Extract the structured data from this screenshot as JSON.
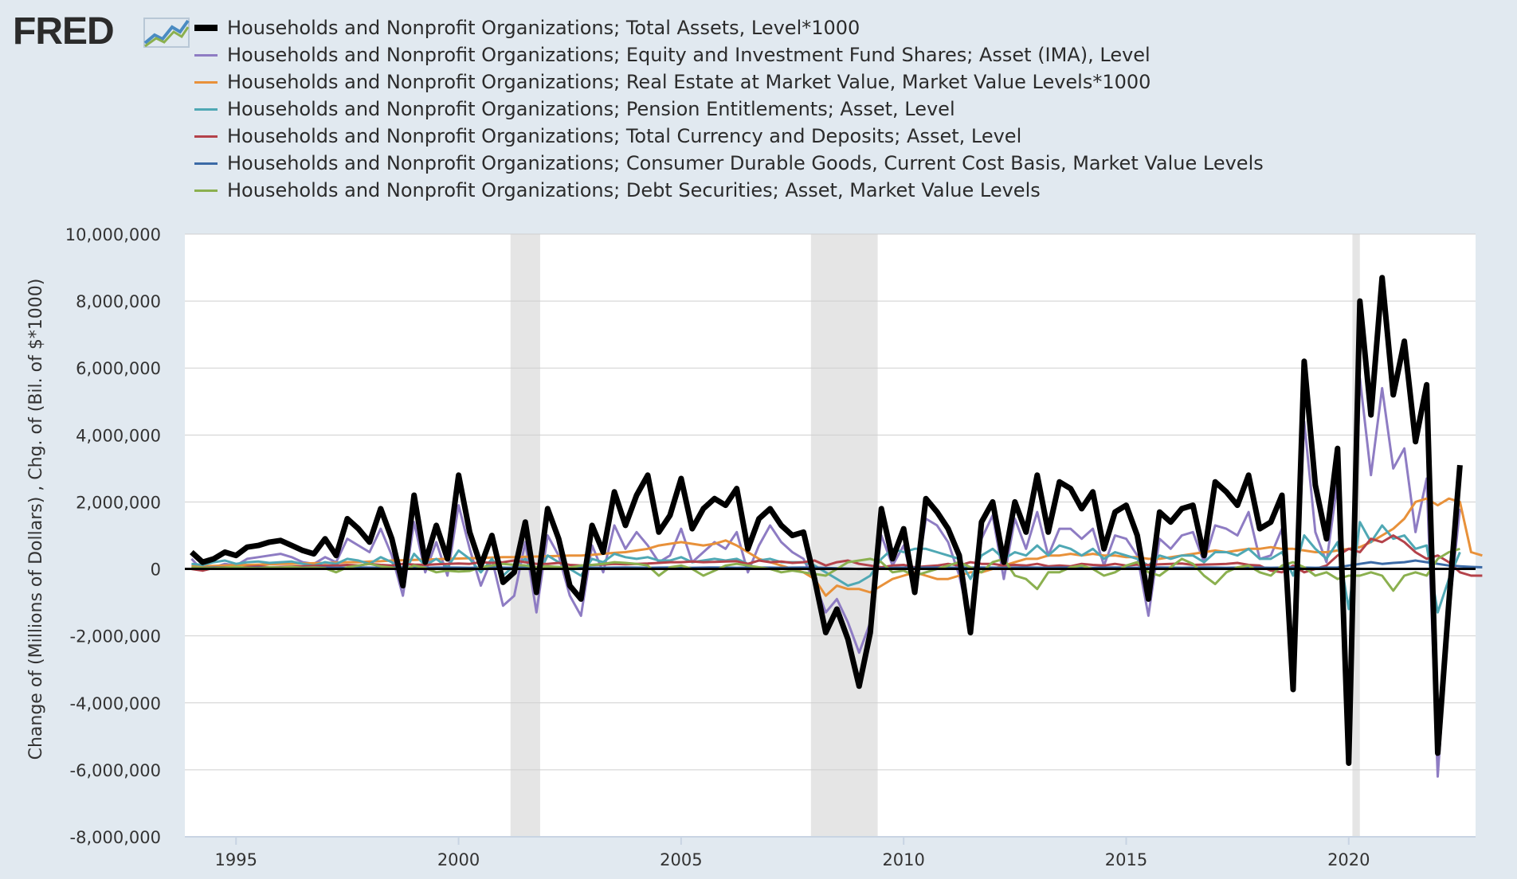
{
  "brand": {
    "name": "FRED"
  },
  "chart_data": {
    "type": "line",
    "ylabel": "Change of (Millions of Dollars) , Chg. of (Bil. of $*1000)",
    "xlabel": "",
    "ylim": [
      -8000000,
      10000000
    ],
    "xlim": [
      1993.85,
      2022.85
    ],
    "y_ticks": [
      10000000,
      8000000,
      6000000,
      4000000,
      2000000,
      0,
      -2000000,
      -4000000,
      -6000000,
      -8000000
    ],
    "y_tick_labels": [
      "10,000,000",
      "8,000,000",
      "6,000,000",
      "4,000,000",
      "2,000,000",
      "0",
      "-2,000,000",
      "-4,000,000",
      "-6,000,000",
      "-8,000,000"
    ],
    "x_ticks": [
      1995,
      2000,
      2005,
      2010,
      2015,
      2020
    ],
    "x_tick_labels": [
      "1995",
      "2000",
      "2005",
      "2010",
      "2015",
      "2020"
    ],
    "grid": "horizontal",
    "legend_position": "top",
    "recessions": [
      [
        2001.167,
        2001.833
      ],
      [
        2007.917,
        2009.417
      ],
      [
        2020.083,
        2020.25
      ]
    ],
    "series": [
      {
        "name": "Households and Nonprofit Organizations; Total Assets, Level*1000",
        "color": "#000000",
        "width": 7,
        "x_start": 1994.0,
        "x_step": 0.25,
        "values": [
          500000,
          200000,
          300000,
          500000,
          400000,
          650000,
          700000,
          800000,
          850000,
          700000,
          550000,
          450000,
          900000,
          400000,
          1500000,
          1200000,
          800000,
          1800000,
          900000,
          -500000,
          2200000,
          200000,
          1300000,
          300000,
          2800000,
          1100000,
          100000,
          1000000,
          -400000,
          -100000,
          1400000,
          -700000,
          1800000,
          900000,
          -500000,
          -900000,
          1300000,
          500000,
          2300000,
          1300000,
          2200000,
          2800000,
          1100000,
          1600000,
          2700000,
          1200000,
          1800000,
          2100000,
          1900000,
          2400000,
          600000,
          1500000,
          1800000,
          1300000,
          1000000,
          1100000,
          -300000,
          -1900000,
          -1200000,
          -2100000,
          -3500000,
          -1900000,
          1800000,
          300000,
          1200000,
          -700000,
          2100000,
          1700000,
          1200000,
          400000,
          -1900000,
          1400000,
          2000000,
          200000,
          2000000,
          1100000,
          2800000,
          1100000,
          2600000,
          2400000,
          1800000,
          2300000,
          600000,
          1700000,
          1900000,
          1000000,
          -900000,
          1700000,
          1400000,
          1800000,
          1900000,
          400000,
          2600000,
          2300000,
          1900000,
          2800000,
          1200000,
          1400000,
          2200000,
          -3600000,
          6200000,
          2500000,
          900000,
          3600000,
          -5800000,
          8000000,
          4600000,
          8700000,
          5200000,
          6800000,
          3800000,
          5500000,
          -5500000,
          -1000000,
          3100000
        ]
      },
      {
        "name": "Households and Nonprofit Organizations; Equity and Investment Fund Shares; Asset (IMA), Level",
        "color": "#8e7cc3",
        "width": 3,
        "x_start": 1994.0,
        "x_step": 0.25,
        "values": [
          300000,
          -50000,
          50000,
          150000,
          100000,
          300000,
          350000,
          400000,
          450000,
          350000,
          200000,
          150000,
          350000,
          200000,
          900000,
          700000,
          500000,
          1200000,
          400000,
          -800000,
          1400000,
          -100000,
          800000,
          -200000,
          1900000,
          600000,
          -500000,
          300000,
          -1100000,
          -800000,
          800000,
          -1300000,
          1000000,
          400000,
          -800000,
          -1400000,
          700000,
          -100000,
          1300000,
          600000,
          1100000,
          700000,
          200000,
          400000,
          1200000,
          200000,
          500000,
          800000,
          600000,
          1100000,
          -100000,
          700000,
          1300000,
          800000,
          500000,
          300000,
          -400000,
          -1300000,
          -900000,
          -1600000,
          -2500000,
          -1600000,
          1000000,
          100000,
          700000,
          -600000,
          1500000,
          1300000,
          800000,
          -200000,
          -1700000,
          900000,
          1600000,
          -300000,
          1500000,
          600000,
          1700000,
          400000,
          1200000,
          1200000,
          900000,
          1200000,
          100000,
          1000000,
          900000,
          400000,
          -1400000,
          900000,
          600000,
          1000000,
          1100000,
          200000,
          1300000,
          1200000,
          1000000,
          1700000,
          300000,
          400000,
          1200000,
          -3500000,
          4400000,
          1100000,
          200000,
          2600000,
          -5500000,
          5700000,
          2800000,
          5400000,
          3000000,
          3600000,
          1100000,
          2700000,
          -6200000,
          -1300000,
          1800000
        ]
      },
      {
        "name": "Households and Nonprofit Organizations; Real Estate at Market Value, Market Value Levels*1000",
        "color": "#e8913a",
        "width": 3,
        "x_start": 1994.0,
        "x_step": 0.25,
        "values": [
          100000,
          80000,
          90000,
          100000,
          110000,
          120000,
          130000,
          140000,
          150000,
          150000,
          160000,
          170000,
          180000,
          190000,
          200000,
          200000,
          220000,
          230000,
          250000,
          260000,
          270000,
          280000,
          290000,
          300000,
          310000,
          320000,
          330000,
          340000,
          350000,
          350000,
          360000,
          370000,
          380000,
          390000,
          400000,
          400000,
          420000,
          450000,
          480000,
          500000,
          550000,
          600000,
          700000,
          750000,
          800000,
          750000,
          700000,
          750000,
          850000,
          700000,
          500000,
          300000,
          200000,
          100000,
          0,
          -100000,
          -300000,
          -800000,
          -500000,
          -600000,
          -600000,
          -700000,
          -500000,
          -300000,
          -200000,
          -100000,
          -200000,
          -300000,
          -300000,
          -200000,
          -100000,
          -100000,
          0,
          100000,
          200000,
          300000,
          300000,
          400000,
          400000,
          450000,
          400000,
          450000,
          400000,
          400000,
          350000,
          350000,
          300000,
          300000,
          350000,
          400000,
          450000,
          500000,
          550000,
          500000,
          550000,
          600000,
          600000,
          650000,
          600000,
          600000,
          550000,
          500000,
          500000,
          550000,
          600000,
          650000,
          800000,
          1000000,
          1200000,
          1500000,
          2000000,
          2100000,
          1900000,
          2100000,
          2000000,
          500000,
          400000
        ]
      },
      {
        "name": "Households and Nonprofit Organizations; Pension Entitlements; Asset, Level",
        "color": "#4fa8b4",
        "width": 3,
        "x_start": 1994.0,
        "x_step": 0.25,
        "values": [
          150000,
          120000,
          200000,
          250000,
          150000,
          200000,
          220000,
          180000,
          200000,
          220000,
          150000,
          100000,
          200000,
          150000,
          300000,
          250000,
          150000,
          350000,
          200000,
          -200000,
          450000,
          100000,
          300000,
          50000,
          550000,
          300000,
          -100000,
          300000,
          -200000,
          100000,
          300000,
          -300000,
          400000,
          200000,
          0,
          -200000,
          300000,
          200000,
          450000,
          350000,
          300000,
          350000,
          250000,
          250000,
          350000,
          200000,
          250000,
          300000,
          250000,
          300000,
          150000,
          250000,
          300000,
          200000,
          200000,
          200000,
          100000,
          -100000,
          -300000,
          -500000,
          -400000,
          -200000,
          300000,
          600000,
          500000,
          600000,
          600000,
          500000,
          400000,
          300000,
          -300000,
          400000,
          600000,
          300000,
          500000,
          400000,
          700000,
          400000,
          700000,
          600000,
          400000,
          600000,
          300000,
          500000,
          400000,
          300000,
          100000,
          400000,
          300000,
          400000,
          400000,
          200000,
          500000,
          500000,
          400000,
          600000,
          300000,
          300000,
          500000,
          -200000,
          1000000,
          600000,
          300000,
          800000,
          -1200000,
          1400000,
          800000,
          1300000,
          900000,
          1000000,
          600000,
          700000,
          -1300000,
          -300000,
          500000
        ]
      },
      {
        "name": "Households and Nonprofit Organizations; Total Currency and Deposits; Asset, Level",
        "color": "#b4424a",
        "width": 3,
        "x_start": 1994.0,
        "x_step": 0.25,
        "values": [
          0,
          -50000,
          30000,
          50000,
          20000,
          60000,
          80000,
          50000,
          60000,
          70000,
          80000,
          90000,
          100000,
          100000,
          120000,
          100000,
          150000,
          120000,
          100000,
          150000,
          130000,
          120000,
          140000,
          150000,
          160000,
          150000,
          200000,
          180000,
          200000,
          250000,
          200000,
          150000,
          150000,
          180000,
          120000,
          100000,
          120000,
          130000,
          150000,
          140000,
          150000,
          160000,
          180000,
          200000,
          200000,
          220000,
          200000,
          210000,
          220000,
          230000,
          150000,
          250000,
          200000,
          220000,
          180000,
          200000,
          250000,
          100000,
          200000,
          250000,
          150000,
          100000,
          50000,
          100000,
          120000,
          50000,
          80000,
          100000,
          150000,
          100000,
          200000,
          150000,
          150000,
          100000,
          120000,
          100000,
          150000,
          80000,
          100000,
          80000,
          150000,
          120000,
          100000,
          150000,
          100000,
          130000,
          120000,
          140000,
          150000,
          160000,
          120000,
          130000,
          140000,
          150000,
          180000,
          120000,
          100000,
          -50000,
          -100000,
          100000,
          -100000,
          0,
          100000,
          400000,
          600000,
          500000,
          900000,
          800000,
          1000000,
          800000,
          500000,
          300000,
          400000,
          200000,
          -100000,
          -200000,
          -200000
        ]
      },
      {
        "name": "Households and Nonprofit Organizations; Consumer Durable Goods, Current Cost Basis, Market Value Levels",
        "color": "#3b6aa6",
        "width": 3,
        "x_start": 1994.0,
        "x_step": 0.25,
        "values": [
          40000,
          35000,
          40000,
          45000,
          40000,
          35000,
          40000,
          45000,
          40000,
          35000,
          40000,
          45000,
          40000,
          35000,
          40000,
          45000,
          40000,
          35000,
          40000,
          45000,
          40000,
          35000,
          40000,
          45000,
          40000,
          35000,
          40000,
          45000,
          40000,
          35000,
          40000,
          45000,
          40000,
          35000,
          40000,
          45000,
          40000,
          35000,
          40000,
          45000,
          40000,
          35000,
          40000,
          45000,
          40000,
          35000,
          40000,
          45000,
          40000,
          35000,
          40000,
          45000,
          40000,
          35000,
          40000,
          45000,
          40000,
          30000,
          20000,
          10000,
          0,
          10000,
          20000,
          30000,
          40000,
          35000,
          40000,
          45000,
          40000,
          35000,
          40000,
          45000,
          40000,
          35000,
          40000,
          45000,
          40000,
          35000,
          40000,
          45000,
          40000,
          35000,
          40000,
          45000,
          40000,
          35000,
          40000,
          45000,
          40000,
          35000,
          40000,
          45000,
          40000,
          35000,
          40000,
          45000,
          40000,
          35000,
          40000,
          45000,
          40000,
          35000,
          40000,
          45000,
          100000,
          150000,
          200000,
          150000,
          180000,
          200000,
          250000,
          200000,
          150000,
          100000,
          80000,
          60000,
          50000
        ]
      },
      {
        "name": "Households and Nonprofit Organizations; Debt Securities; Asset, Market Value Levels",
        "color": "#8bb04f",
        "width": 3,
        "x_start": 1994.0,
        "x_step": 0.25,
        "values": [
          50000,
          30000,
          20000,
          40000,
          60000,
          30000,
          20000,
          50000,
          40000,
          60000,
          30000,
          40000,
          20000,
          -100000,
          50000,
          100000,
          150000,
          80000,
          40000,
          -50000,
          100000,
          30000,
          -100000,
          -50000,
          -80000,
          -60000,
          50000,
          100000,
          150000,
          120000,
          100000,
          50000,
          80000,
          60000,
          40000,
          100000,
          120000,
          150000,
          200000,
          180000,
          150000,
          100000,
          -200000,
          50000,
          100000,
          0,
          -200000,
          -50000,
          100000,
          150000,
          100000,
          50000,
          0,
          -100000,
          -50000,
          -100000,
          -150000,
          -200000,
          0,
          200000,
          250000,
          300000,
          200000,
          -100000,
          -50000,
          -200000,
          -100000,
          0,
          100000,
          200000,
          50000,
          -100000,
          200000,
          300000,
          -200000,
          -300000,
          -600000,
          -100000,
          -100000,
          50000,
          100000,
          0,
          -200000,
          -100000,
          100000,
          200000,
          -100000,
          -200000,
          50000,
          300000,
          150000,
          -200000,
          -450000,
          -100000,
          50000,
          100000,
          -100000,
          -200000,
          100000,
          200000,
          50000,
          -200000,
          -100000,
          -300000,
          -200000,
          -200000,
          -100000,
          -200000,
          -650000,
          -200000,
          -100000,
          -200000,
          300000,
          500000,
          600000
        ]
      }
    ]
  }
}
